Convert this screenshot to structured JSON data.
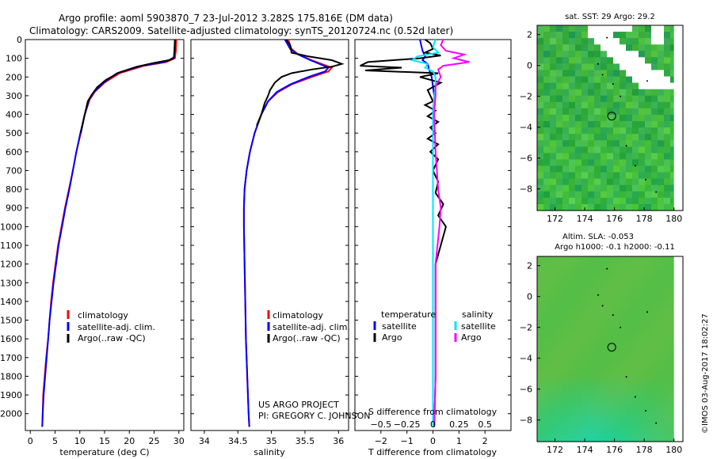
{
  "title_line1": "Argo profile: aoml 5903870_7 23-Jul-2012 3.282S 175.816E (DM data)",
  "title_line2": "Climatology: CARS2009. Satellite-adjusted climatology: synTS_20120724.nc (0.52d later)",
  "credit_line1": "US ARGO PROJECT",
  "credit_line2": "PI: GREGORY C. JOHNSON",
  "imos_stamp": "©IMOS 03-Aug-2017 18:02:27",
  "colors": {
    "clim": "#ff0000",
    "sat": "#0000ff",
    "argo": "#000000",
    "sal_sat": "#00e5ff",
    "sal_argo": "#ff00ff"
  },
  "chart_data": [
    {
      "id": "temperature",
      "type": "line",
      "xlabel": "temperature (deg C)",
      "ylabel": "",
      "xlim": [
        -1,
        31
      ],
      "ylim": [
        2090,
        0
      ],
      "xticks": [
        0,
        5,
        10,
        15,
        20,
        25,
        30
      ],
      "yticks": [
        0,
        100,
        200,
        300,
        400,
        500,
        600,
        700,
        800,
        900,
        1000,
        1100,
        1200,
        1300,
        1400,
        1500,
        1600,
        1700,
        1800,
        1900,
        2000
      ],
      "legend": [
        "climatology",
        "satellite-adj. clim.",
        "Argo(..raw -QC)"
      ],
      "series": [
        {
          "name": "climatology",
          "color": "#ff0000",
          "points": [
            [
              29.5,
              0
            ],
            [
              29.4,
              60
            ],
            [
              29.2,
              100
            ],
            [
              27.5,
              120
            ],
            [
              23,
              140
            ],
            [
              18,
              180
            ],
            [
              15,
              230
            ],
            [
              13,
              280
            ],
            [
              12,
              320
            ],
            [
              11,
              400
            ],
            [
              10.2,
              500
            ],
            [
              9.3,
              600
            ],
            [
              8.6,
              700
            ],
            [
              7.8,
              800
            ],
            [
              7,
              900
            ],
            [
              6.3,
              1000
            ],
            [
              5.6,
              1100
            ],
            [
              5.1,
              1200
            ],
            [
              4.6,
              1300
            ],
            [
              4.2,
              1400
            ],
            [
              3.9,
              1500
            ],
            [
              3.6,
              1600
            ],
            [
              3.2,
              1700
            ],
            [
              2.9,
              1800
            ],
            [
              2.6,
              1900
            ],
            [
              2.5,
              2000
            ],
            [
              2.4,
              2070
            ]
          ]
        },
        {
          "name": "satellite-adj. clim.",
          "color": "#0000ff",
          "points": [
            [
              29.2,
              0
            ],
            [
              29.2,
              60
            ],
            [
              29,
              100
            ],
            [
              27,
              120
            ],
            [
              22.5,
              140
            ],
            [
              17.5,
              180
            ],
            [
              14.8,
              230
            ],
            [
              12.9,
              280
            ],
            [
              11.9,
              320
            ],
            [
              11,
              400
            ],
            [
              10.1,
              500
            ],
            [
              9.3,
              600
            ],
            [
              8.6,
              700
            ],
            [
              7.9,
              800
            ],
            [
              7.1,
              900
            ],
            [
              6.4,
              1000
            ],
            [
              5.7,
              1100
            ],
            [
              5.2,
              1200
            ],
            [
              4.7,
              1300
            ],
            [
              4.3,
              1400
            ],
            [
              3.9,
              1500
            ],
            [
              3.6,
              1600
            ],
            [
              3.3,
              1700
            ],
            [
              3,
              1800
            ],
            [
              2.7,
              1900
            ],
            [
              2.5,
              2000
            ],
            [
              2.4,
              2070
            ]
          ]
        },
        {
          "name": "Argo(..raw -QC)",
          "color": "#000000",
          "points": [
            [
              29.2,
              0
            ],
            [
              29.1,
              60
            ],
            [
              29,
              95
            ],
            [
              28,
              110
            ],
            [
              25,
              125
            ],
            [
              21.5,
              145
            ],
            [
              18,
              175
            ],
            [
              15.3,
              215
            ],
            [
              13.5,
              255
            ],
            [
              12.4,
              295
            ],
            [
              11.6,
              330
            ],
            [
              11,
              400
            ],
            [
              10.2,
              500
            ]
          ]
        }
      ]
    },
    {
      "id": "salinity",
      "type": "line",
      "xlabel": "salinity",
      "xlim": [
        33.8,
        36.15
      ],
      "ylim": [
        2090,
        0
      ],
      "xticks": [
        34,
        34.5,
        35,
        35.5,
        36
      ],
      "legend": [
        "climatology",
        "satellite-adj. clim.",
        "Argo(..raw -QC)"
      ],
      "series": [
        {
          "name": "climatology",
          "color": "#ff0000",
          "points": [
            [
              35.25,
              0
            ],
            [
              35.3,
              50
            ],
            [
              35.4,
              80
            ],
            [
              35.6,
              110
            ],
            [
              35.9,
              150
            ],
            [
              35.85,
              170
            ],
            [
              35.6,
              200
            ],
            [
              35.3,
              240
            ],
            [
              35.1,
              280
            ],
            [
              34.95,
              330
            ],
            [
              34.85,
              400
            ],
            [
              34.75,
              500
            ],
            [
              34.68,
              600
            ],
            [
              34.63,
              700
            ],
            [
              34.6,
              800
            ],
            [
              34.59,
              900
            ],
            [
              34.59,
              1000
            ],
            [
              34.6,
              1200
            ],
            [
              34.61,
              1400
            ],
            [
              34.62,
              1600
            ],
            [
              34.64,
              1800
            ],
            [
              34.66,
              2000
            ],
            [
              34.67,
              2070
            ]
          ]
        },
        {
          "name": "satellite-adj. clim.",
          "color": "#0000ff",
          "points": [
            [
              35.2,
              0
            ],
            [
              35.28,
              50
            ],
            [
              35.4,
              80
            ],
            [
              35.58,
              110
            ],
            [
              35.85,
              150
            ],
            [
              35.8,
              170
            ],
            [
              35.55,
              200
            ],
            [
              35.28,
              240
            ],
            [
              35.08,
              280
            ],
            [
              34.95,
              330
            ],
            [
              34.85,
              400
            ],
            [
              34.75,
              500
            ],
            [
              34.68,
              600
            ],
            [
              34.63,
              700
            ],
            [
              34.6,
              800
            ],
            [
              34.59,
              900
            ],
            [
              34.59,
              1000
            ],
            [
              34.6,
              1200
            ],
            [
              34.61,
              1400
            ],
            [
              34.62,
              1600
            ],
            [
              34.64,
              1800
            ],
            [
              34.66,
              2000
            ],
            [
              34.67,
              2070
            ]
          ]
        },
        {
          "name": "Argo(..raw -QC)",
          "color": "#000000",
          "points": [
            [
              35.22,
              0
            ],
            [
              35.28,
              30
            ],
            [
              35.3,
              70
            ],
            [
              35.55,
              90
            ],
            [
              35.9,
              110
            ],
            [
              36.05,
              130
            ],
            [
              35.9,
              145
            ],
            [
              35.6,
              160
            ],
            [
              35.3,
              180
            ],
            [
              35.15,
              200
            ],
            [
              35.05,
              230
            ],
            [
              34.98,
              270
            ],
            [
              34.95,
              300
            ],
            [
              34.9,
              340
            ],
            [
              34.85,
              400
            ],
            [
              34.78,
              460
            ]
          ]
        }
      ]
    },
    {
      "id": "difference",
      "type": "line",
      "xlabel": "T difference from climatology",
      "xlabel_top": "S difference from climatology",
      "xlim": [
        -3,
        3
      ],
      "ylim": [
        2090,
        0
      ],
      "xticks": [
        -2,
        -1,
        0,
        1,
        2
      ],
      "xticks_top": [
        -0.5,
        -0.25,
        0,
        0.25,
        0.5
      ],
      "legend_temperature_title": "temperature",
      "legend_salinity_title": "salinity",
      "legend": [
        "satellite",
        "Argo",
        "satellite",
        "Argo"
      ],
      "series": [
        {
          "name": "temperature satellite",
          "color": "#0000ff",
          "points": [
            [
              -0.5,
              0
            ],
            [
              -0.45,
              30
            ],
            [
              -0.4,
              60
            ],
            [
              -0.3,
              90
            ],
            [
              -0.4,
              110
            ],
            [
              -0.2,
              130
            ],
            [
              -0.15,
              160
            ],
            [
              -0.05,
              200
            ],
            [
              0,
              250
            ],
            [
              0.05,
              300
            ],
            [
              0,
              400
            ],
            [
              0,
              600
            ],
            [
              0,
              800
            ],
            [
              0,
              1000
            ],
            [
              0,
              1500
            ],
            [
              0,
              2000
            ],
            [
              0,
              2070
            ]
          ]
        },
        {
          "name": "temperature Argo",
          "color": "#000000",
          "points": [
            [
              -0.3,
              0
            ],
            [
              -0.1,
              20
            ],
            [
              0,
              50
            ],
            [
              -0.3,
              70
            ],
            [
              0.3,
              85
            ],
            [
              -0.5,
              100
            ],
            [
              -2.5,
              120
            ],
            [
              -2.8,
              140
            ],
            [
              -1.2,
              150
            ],
            [
              -2.6,
              165
            ],
            [
              0.2,
              180
            ],
            [
              -0.5,
              200
            ],
            [
              0.3,
              230
            ],
            [
              -0.2,
              270
            ],
            [
              -0.1,
              300
            ],
            [
              0,
              330
            ],
            [
              -0.3,
              350
            ],
            [
              0.1,
              380
            ],
            [
              -0.2,
              410
            ],
            [
              0.2,
              440
            ],
            [
              -0.1,
              470
            ],
            [
              0.1,
              500
            ],
            [
              -0.2,
              530
            ],
            [
              0.2,
              560
            ],
            [
              -0.1,
              600
            ],
            [
              0.2,
              640
            ],
            [
              0,
              700
            ],
            [
              0.2,
              760
            ],
            [
              0.1,
              820
            ],
            [
              0.4,
              880
            ],
            [
              0.2,
              940
            ],
            [
              0.5,
              1000
            ],
            [
              0.1,
              1200
            ],
            [
              0.1,
              1500
            ],
            [
              0.1,
              1800
            ],
            [
              0.05,
              2070
            ]
          ]
        },
        {
          "name": "salinity satellite",
          "color": "#00e5ff",
          "points": [
            [
              0.1,
              0
            ],
            [
              0,
              40
            ],
            [
              0.2,
              70
            ],
            [
              -0.6,
              90
            ],
            [
              -0.8,
              110
            ],
            [
              -0.2,
              130
            ],
            [
              -0.3,
              150
            ],
            [
              0,
              170
            ],
            [
              0.1,
              200
            ],
            [
              0.1,
              250
            ],
            [
              0.05,
              300
            ],
            [
              0,
              400
            ],
            [
              0,
              600
            ],
            [
              0,
              800
            ],
            [
              0,
              1000
            ],
            [
              0,
              1500
            ],
            [
              0,
              2000
            ],
            [
              0,
              2070
            ]
          ]
        },
        {
          "name": "salinity Argo",
          "color": "#ff00ff",
          "points": [
            [
              0.4,
              0
            ],
            [
              0.3,
              30
            ],
            [
              0.5,
              60
            ],
            [
              1.2,
              80
            ],
            [
              0.8,
              100
            ],
            [
              1.4,
              120
            ],
            [
              0.4,
              140
            ],
            [
              0.2,
              160
            ],
            [
              0.3,
              200
            ],
            [
              0.1,
              250
            ],
            [
              0.1,
              300
            ],
            [
              0.05,
              400
            ],
            [
              0.1,
              600
            ],
            [
              0.2,
              800
            ],
            [
              0.3,
              900
            ],
            [
              0.25,
              1000
            ],
            [
              0.1,
              1200
            ],
            [
              0.1,
              1500
            ],
            [
              0.1,
              1800
            ],
            [
              0.05,
              2070
            ]
          ]
        }
      ]
    },
    {
      "id": "sst_map",
      "type": "heatmap",
      "title": "sat. SST: 29 Argo: 29.2",
      "xlim": [
        170.8,
        180.6
      ],
      "ylim": [
        -9.4,
        2.6
      ],
      "xticks": [
        172,
        174,
        176,
        178,
        180
      ],
      "yticks": [
        2,
        0,
        -2,
        -4,
        -6,
        -8
      ],
      "marker": [
        175.816,
        -3.282
      ]
    },
    {
      "id": "sla_map",
      "type": "heatmap",
      "title_line1": "Altim. SLA: -0.053",
      "title_line2": "Argo h1000: -0.1 h2000: -0.11",
      "xlim": [
        170.8,
        180.6
      ],
      "ylim": [
        -9.4,
        2.6
      ],
      "xticks": [
        172,
        174,
        176,
        178,
        180
      ],
      "yticks": [
        2,
        0,
        -2,
        -4,
        -6,
        -8
      ],
      "marker": [
        175.816,
        -3.282
      ]
    }
  ]
}
